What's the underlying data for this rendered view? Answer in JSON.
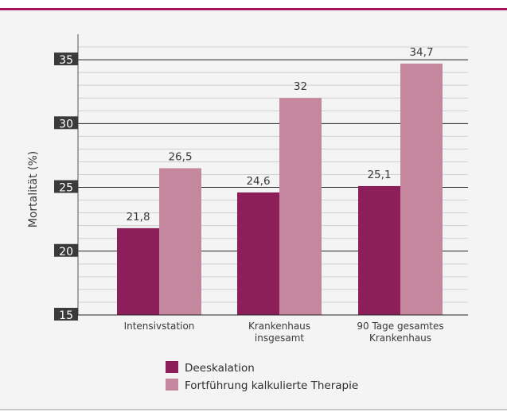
{
  "chart_data": {
    "type": "bar",
    "title": "",
    "xlabel": "",
    "ylabel": "Mortalität (%)",
    "ylim": [
      15,
      37
    ],
    "yticks": [
      "15",
      "20",
      "25",
      "30",
      "35"
    ],
    "grid": true,
    "legend_position": "bottom",
    "categories": [
      [
        "Intensivstation"
      ],
      [
        "Krankenhaus",
        "insgesamt"
      ],
      [
        "90 Tage gesamtes",
        "Krankenhaus"
      ]
    ],
    "series": [
      {
        "name": "Deeskalation",
        "values": [
          21.8,
          24.6,
          25.1
        ],
        "labels": [
          "21,8",
          "24,6",
          "25,1"
        ],
        "color": "#8c1e5a"
      },
      {
        "name": "Fortführung kalkulierte Therapie",
        "values": [
          26.5,
          32,
          34.7
        ],
        "labels": [
          "26,5",
          "32",
          "34,7"
        ],
        "color": "#c4879e"
      }
    ],
    "colors": {
      "accent": "#a8125a",
      "gridline": "#222222",
      "axis": "#555555",
      "panel": "#f4f4f5"
    }
  }
}
